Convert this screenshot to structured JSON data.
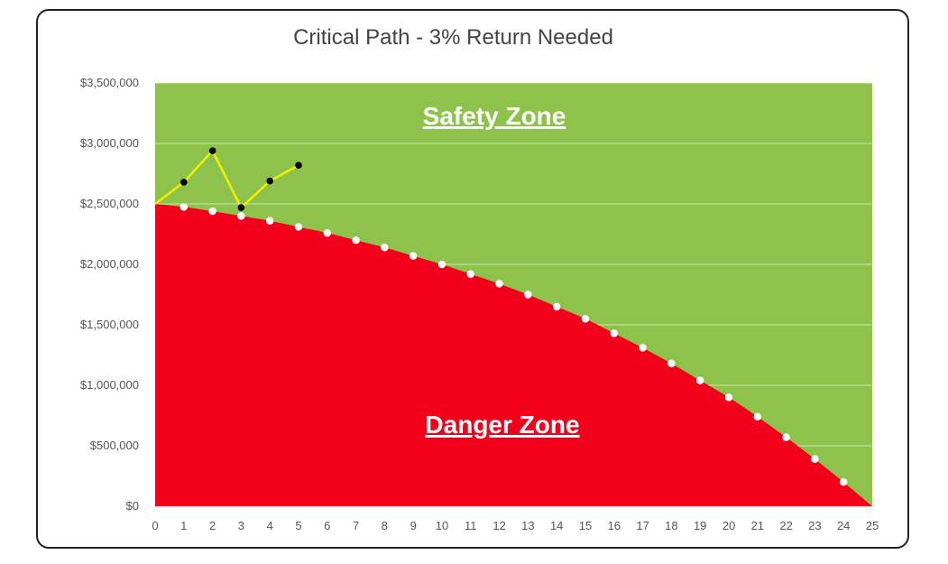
{
  "chart_data": {
    "type": "area",
    "title": "Critical Path - 3% Return Needed",
    "xlabel": "",
    "ylabel": "",
    "xlim": [
      0,
      25
    ],
    "ylim": [
      0,
      3500000
    ],
    "x_ticks": [
      "0",
      "1",
      "2",
      "3",
      "4",
      "5",
      "6",
      "7",
      "8",
      "9",
      "10",
      "11",
      "12",
      "13",
      "14",
      "15",
      "16",
      "17",
      "18",
      "19",
      "20",
      "21",
      "22",
      "23",
      "24",
      "25"
    ],
    "y_ticks": [
      "$0",
      "$500,000",
      "$1,000,000",
      "$1,500,000",
      "$2,000,000",
      "$2,500,000",
      "$3,000,000",
      "$3,500,000"
    ],
    "grid": true,
    "zones": {
      "safety_label": "Safety Zone",
      "danger_label": "Danger Zone",
      "safety_color": "#8dc34a",
      "danger_color": "#f2001c"
    },
    "series": [
      {
        "marker_color": "#ffffff",
        "x": [
          0,
          1,
          2,
          3,
          4,
          5,
          6,
          7,
          8,
          9,
          10,
          11,
          12,
          13,
          14,
          15,
          16,
          17,
          18,
          19,
          20,
          21,
          22,
          23,
          24,
          25
        ],
        "values": [
          2500000,
          2475000,
          2440000,
          2400000,
          2360000,
          2310000,
          2260000,
          2200000,
          2140000,
          2070000,
          2000000,
          1920000,
          1840000,
          1750000,
          1650000,
          1550000,
          1430000,
          1310000,
          1180000,
          1040000,
          900000,
          740000,
          570000,
          390000,
          200000,
          0
        ]
      },
      {
        "line_color": "#f5f000",
        "marker_color": "#000000",
        "x": [
          0,
          1,
          2,
          3,
          4,
          5
        ],
        "values": [
          2500000,
          2680000,
          2940000,
          2470000,
          2690000,
          2820000
        ]
      }
    ]
  }
}
